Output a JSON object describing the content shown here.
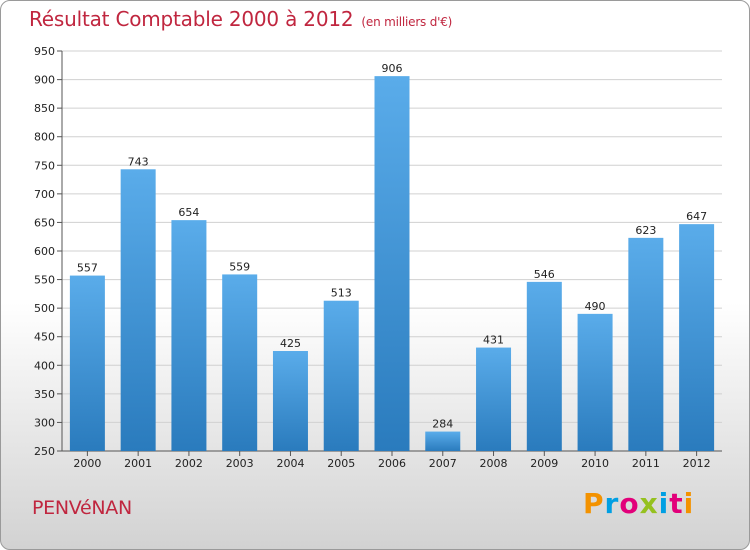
{
  "title": "Résultat Comptable 2000 à 2012",
  "subtitle": "(en milliers d'€)",
  "place": "PENVéNAN",
  "logo": {
    "letters": [
      "P",
      "r",
      "o",
      "x",
      "i",
      "t",
      "i"
    ],
    "colors": [
      "#f39200",
      "#009fe3",
      "#e2007a",
      "#95c11f",
      "#009fe3",
      "#e2007a",
      "#f39200"
    ]
  },
  "colors": {
    "accent": "#c0263f",
    "bar_top": "#5aacea",
    "bar_bottom": "#2a7bbd"
  },
  "chart_data": {
    "type": "bar",
    "categories": [
      "2000",
      "2001",
      "2002",
      "2003",
      "2004",
      "2005",
      "2006",
      "2007",
      "2008",
      "2009",
      "2010",
      "2011",
      "2012"
    ],
    "values": [
      557,
      743,
      654,
      559,
      425,
      513,
      906,
      284,
      431,
      546,
      490,
      623,
      647
    ],
    "title": "Résultat Comptable 2000 à 2012",
    "xlabel": "",
    "ylabel": "",
    "ylim": [
      250,
      950
    ],
    "yticks": [
      250,
      300,
      350,
      400,
      450,
      500,
      550,
      600,
      650,
      700,
      750,
      800,
      850,
      900,
      950
    ],
    "grid": true,
    "legend": "none"
  }
}
